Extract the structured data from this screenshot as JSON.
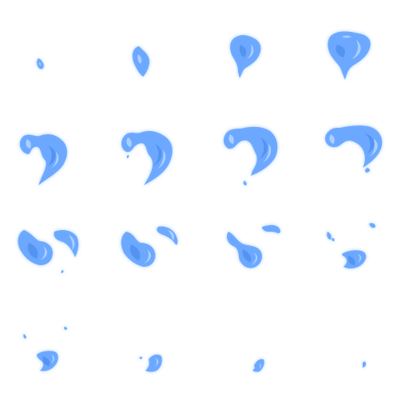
{
  "sheet": {
    "kind": "sprite-sheet",
    "rows": 4,
    "columns": 4,
    "frame_count": 16,
    "background": "#ffffff",
    "colors": {
      "base": "#69a6ff",
      "highlight": "#b9d8ff",
      "shadow": "#4f8fee",
      "glow": "#7fb6ff"
    }
  }
}
